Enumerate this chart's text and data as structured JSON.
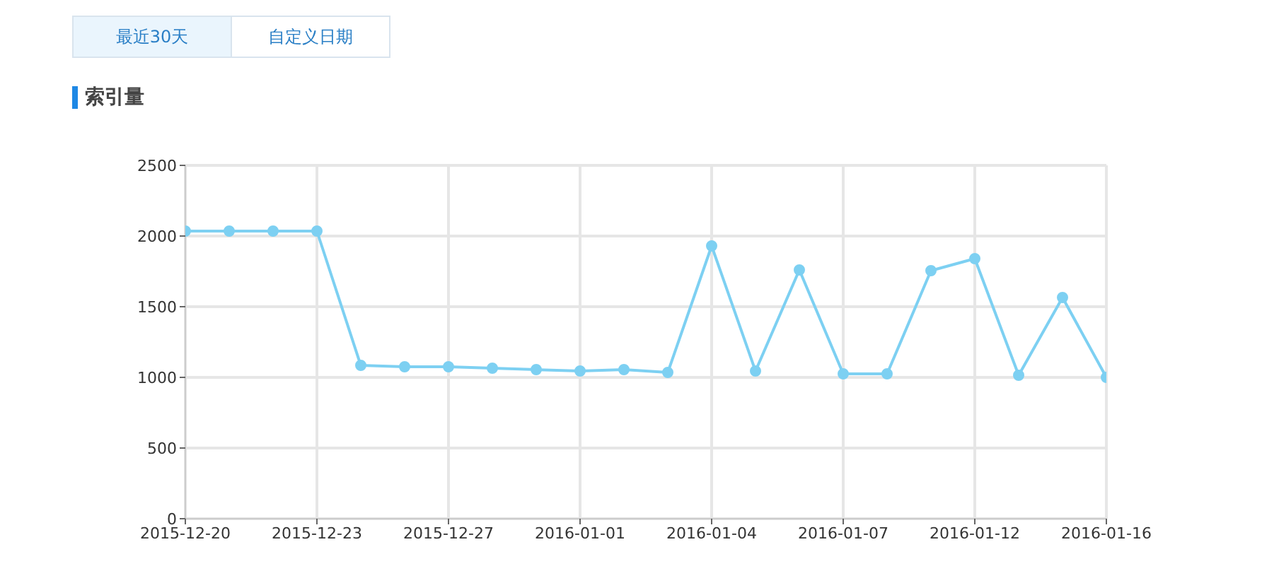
{
  "chart_data": {
    "type": "line",
    "title": "索引量",
    "annotations": [
      "最近30天",
      "自定义日期"
    ],
    "categories": [
      "2015-12-20",
      null,
      null,
      "2015-12-23",
      null,
      null,
      "2015-12-27",
      null,
      null,
      "2016-01-01",
      null,
      null,
      "2016-01-04",
      null,
      null,
      "2016-01-07",
      null,
      null,
      "2016-01-12",
      null,
      null,
      "2016-01-16"
    ],
    "series": [
      {
        "color": "#7dd0f2",
        "values": [
          2035,
          2035,
          2035,
          2035,
          1085,
          1075,
          1075,
          1065,
          1055,
          1045,
          1055,
          1035,
          1930,
          1045,
          1760,
          1025,
          1025,
          1755,
          1840,
          1015,
          1565,
          1000
        ]
      }
    ],
    "ylim": [
      0,
      2500
    ],
    "yticks": [
      0,
      500,
      1000,
      1500,
      2000,
      2500
    ],
    "grid": true,
    "marker": "circle",
    "line_style": "solid",
    "legend": false
  }
}
